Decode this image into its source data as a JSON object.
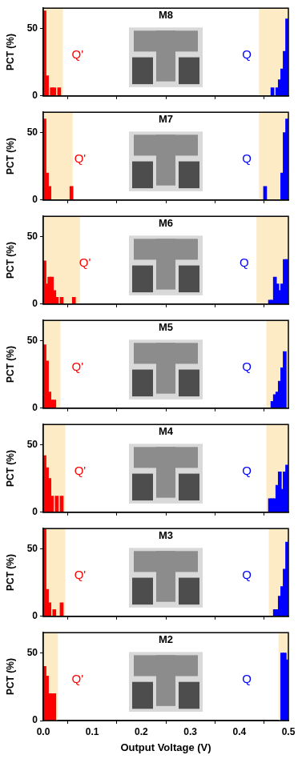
{
  "chart_data": [
    {
      "type": "bar",
      "title": "M8",
      "y_label": "PCT (%)",
      "xlim": [
        0,
        0.5
      ],
      "xticks": [
        0,
        0.1,
        0.2,
        0.3,
        0.4,
        0.5
      ],
      "ylim": [
        0,
        65
      ],
      "yticks": [
        0,
        50
      ],
      "grid": false,
      "tick_labels": "y",
      "shaded_ranges": [
        [
          0,
          0.04
        ],
        [
          0.44,
          0.5
        ]
      ],
      "annotations": [
        {
          "text": "Q'",
          "x": 0.07,
          "y": 30,
          "color": "#ff0000"
        },
        {
          "text": "Q",
          "x": 0.415,
          "y": 30,
          "color": "#0000ff"
        }
      ],
      "series": [
        {
          "color": "#ff0000",
          "x": [
            0.0025,
            0.0075,
            0.0175,
            0.0225,
            0.0325
          ],
          "values": [
            63,
            15,
            6,
            6,
            6
          ]
        },
        {
          "color": "#0000ff",
          "x": [
            0.4675,
            0.4775,
            0.4825,
            0.4875,
            0.4925,
            0.4975
          ],
          "values": [
            6,
            6,
            12,
            20,
            33,
            57
          ]
        }
      ]
    },
    {
      "type": "bar",
      "title": "M7",
      "y_label": "PCT (%)",
      "xlim": [
        0,
        0.5
      ],
      "xticks": [
        0,
        0.1,
        0.2,
        0.3,
        0.4,
        0.5
      ],
      "ylim": [
        0,
        65
      ],
      "yticks": [
        0,
        50
      ],
      "grid": false,
      "tick_labels": "y",
      "shaded_ranges": [
        [
          0,
          0.06
        ],
        [
          0.44,
          0.5
        ]
      ],
      "annotations": [
        {
          "text": "Q'",
          "x": 0.075,
          "y": 30,
          "color": "#ff0000"
        },
        {
          "text": "Q",
          "x": 0.415,
          "y": 30,
          "color": "#0000ff"
        }
      ],
      "series": [
        {
          "color": "#ff0000",
          "x": [
            0.0025,
            0.0075,
            0.0125,
            0.0575
          ],
          "values": [
            60,
            20,
            10,
            10
          ]
        },
        {
          "color": "#0000ff",
          "x": [
            0.4525,
            0.4875,
            0.4925,
            0.4975
          ],
          "values": [
            10,
            20,
            50,
            60
          ]
        }
      ]
    },
    {
      "type": "bar",
      "title": "M6",
      "y_label": "PCT (%)",
      "xlim": [
        0,
        0.5
      ],
      "xticks": [
        0,
        0.1,
        0.2,
        0.3,
        0.4,
        0.5
      ],
      "ylim": [
        0,
        65
      ],
      "yticks": [
        0,
        50
      ],
      "grid": false,
      "tick_labels": "y",
      "shaded_ranges": [
        [
          0,
          0.075
        ],
        [
          0.435,
          0.5
        ]
      ],
      "annotations": [
        {
          "text": "Q'",
          "x": 0.085,
          "y": 30,
          "color": "#ff0000"
        },
        {
          "text": "Q",
          "x": 0.41,
          "y": 30,
          "color": "#0000ff"
        }
      ],
      "series": [
        {
          "color": "#ff0000",
          "x": [
            0.0025,
            0.0075,
            0.0125,
            0.0175,
            0.0225,
            0.0275,
            0.0375,
            0.0625
          ],
          "values": [
            32,
            15,
            20,
            20,
            10,
            5,
            5,
            5
          ]
        },
        {
          "color": "#0000ff",
          "x": [
            0.4625,
            0.4675,
            0.4725,
            0.4775,
            0.4825,
            0.4875,
            0.4925,
            0.4975
          ],
          "values": [
            3,
            3,
            20,
            15,
            10,
            15,
            33,
            33
          ]
        }
      ]
    },
    {
      "type": "bar",
      "title": "M5",
      "y_label": "PCT (%)",
      "xlim": [
        0,
        0.5
      ],
      "xticks": [
        0,
        0.1,
        0.2,
        0.3,
        0.4,
        0.5
      ],
      "ylim": [
        0,
        65
      ],
      "yticks": [
        0,
        50
      ],
      "grid": false,
      "tick_labels": "y",
      "shaded_ranges": [
        [
          0,
          0.035
        ],
        [
          0.455,
          0.5
        ]
      ],
      "annotations": [
        {
          "text": "Q'",
          "x": 0.07,
          "y": 30,
          "color": "#ff0000"
        },
        {
          "text": "Q",
          "x": 0.415,
          "y": 30,
          "color": "#0000ff"
        }
      ],
      "series": [
        {
          "color": "#ff0000",
          "x": [
            0.0025,
            0.0075,
            0.0125,
            0.0175,
            0.0225
          ],
          "values": [
            47,
            35,
            12,
            6,
            6
          ]
        },
        {
          "color": "#0000ff",
          "x": [
            0.4675,
            0.4725,
            0.4775,
            0.4825,
            0.4875,
            0.4925
          ],
          "values": [
            5,
            10,
            12,
            20,
            30,
            42
          ]
        }
      ]
    },
    {
      "type": "bar",
      "title": "M4",
      "y_label": "PCT (%)",
      "xlim": [
        0,
        0.5
      ],
      "xticks": [
        0,
        0.1,
        0.2,
        0.3,
        0.4,
        0.5
      ],
      "ylim": [
        0,
        65
      ],
      "yticks": [
        0,
        50
      ],
      "grid": false,
      "tick_labels": "y",
      "shaded_ranges": [
        [
          0,
          0.045
        ],
        [
          0.455,
          0.5
        ]
      ],
      "annotations": [
        {
          "text": "Q'",
          "x": 0.075,
          "y": 30,
          "color": "#ff0000"
        },
        {
          "text": "Q",
          "x": 0.415,
          "y": 30,
          "color": "#0000ff"
        }
      ],
      "series": [
        {
          "color": "#ff0000",
          "x": [
            0.0025,
            0.0075,
            0.0125,
            0.0175,
            0.0275,
            0.0375
          ],
          "values": [
            42,
            33,
            25,
            12,
            12,
            12
          ]
        },
        {
          "color": "#0000ff",
          "x": [
            0.4625,
            0.4675,
            0.4725,
            0.4775,
            0.4825,
            0.4875,
            0.4925,
            0.4975
          ],
          "values": [
            10,
            10,
            10,
            20,
            30,
            17,
            30,
            35
          ]
        }
      ]
    },
    {
      "type": "bar",
      "title": "M3",
      "y_label": "PCT (%)",
      "xlim": [
        0,
        0.5
      ],
      "xticks": [
        0,
        0.1,
        0.2,
        0.3,
        0.4,
        0.5
      ],
      "ylim": [
        0,
        65
      ],
      "yticks": [
        0,
        50
      ],
      "grid": false,
      "tick_labels": "y",
      "shaded_ranges": [
        [
          0,
          0.045
        ],
        [
          0.46,
          0.5
        ]
      ],
      "annotations": [
        {
          "text": "Q'",
          "x": 0.075,
          "y": 30,
          "color": "#ff0000"
        },
        {
          "text": "Q",
          "x": 0.415,
          "y": 30,
          "color": "#0000ff"
        }
      ],
      "series": [
        {
          "color": "#ff0000",
          "x": [
            0.0025,
            0.0075,
            0.0125,
            0.0225,
            0.0375
          ],
          "values": [
            65,
            20,
            10,
            5,
            10
          ]
        },
        {
          "color": "#0000ff",
          "x": [
            0.4725,
            0.4775,
            0.4825,
            0.4875,
            0.4925,
            0.4975
          ],
          "values": [
            5,
            5,
            15,
            22,
            35,
            55
          ]
        }
      ]
    },
    {
      "type": "bar",
      "title": "M2",
      "y_label": "PCT (%)",
      "x_label": "Output Voltage (V)",
      "xlim": [
        0,
        0.5
      ],
      "xticks": [
        {
          "value": 0,
          "label": "0.0"
        },
        {
          "value": 0.1,
          "label": "0.1"
        },
        {
          "value": 0.2,
          "label": "0.2"
        },
        {
          "value": 0.3,
          "label": "0.3"
        },
        {
          "value": 0.4,
          "label": "0.4"
        },
        {
          "value": 0.5,
          "label": "0.5"
        }
      ],
      "ylim": [
        0,
        65
      ],
      "yticks": [
        0,
        50
      ],
      "grid": false,
      "shaded_ranges": [
        [
          0,
          0.03
        ],
        [
          0.48,
          0.5
        ]
      ],
      "annotations": [
        {
          "text": "Q'",
          "x": 0.07,
          "y": 30,
          "color": "#ff0000"
        },
        {
          "text": "Q",
          "x": 0.415,
          "y": 30,
          "color": "#0000ff"
        }
      ],
      "series": [
        {
          "color": "#ff0000",
          "x": [
            0.0025,
            0.0075,
            0.0125,
            0.0175,
            0.0225
          ],
          "values": [
            40,
            33,
            20,
            20,
            20
          ]
        },
        {
          "color": "#0000ff",
          "x": [
            0.4875,
            0.4925,
            0.4975
          ],
          "values": [
            50,
            50,
            45
          ]
        }
      ]
    }
  ]
}
